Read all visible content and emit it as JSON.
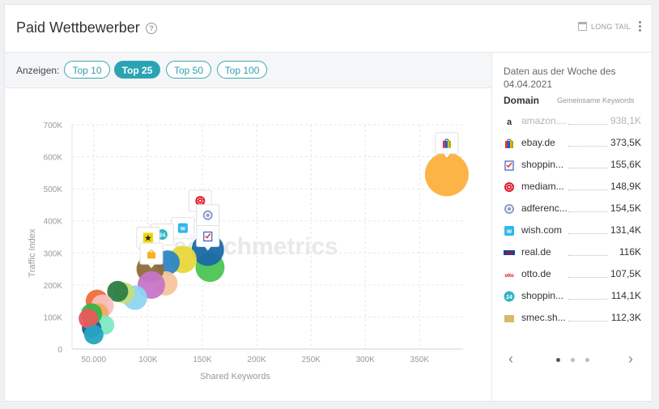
{
  "header": {
    "title": "Paid Wettbewerber",
    "help_icon": "help-circle-icon",
    "long_tail_label": "LONG TAIL",
    "calendar_icon": "calendar-icon",
    "menu_icon": "more-vertical-icon"
  },
  "toolbar": {
    "show_label": "Anzeigen:",
    "options": [
      "Top 10",
      "Top 25",
      "Top 50",
      "Top 100"
    ],
    "selected": "Top 25"
  },
  "watermark": "searchmetrics",
  "chart_data": {
    "type": "scatter",
    "xlabel": "Shared Keywords",
    "ylabel": "Traffic Index",
    "xlim": [
      30000,
      390000
    ],
    "ylim": [
      0,
      700000
    ],
    "x_ticks": [
      {
        "v": 50000,
        "l": "50.000"
      },
      {
        "v": 100000,
        "l": "100K"
      },
      {
        "v": 150000,
        "l": "150K"
      },
      {
        "v": 200000,
        "l": "200K"
      },
      {
        "v": 250000,
        "l": "250K"
      },
      {
        "v": 300000,
        "l": "300K"
      },
      {
        "v": 350000,
        "l": "350K"
      }
    ],
    "y_ticks": [
      {
        "v": 0,
        "l": "0"
      },
      {
        "v": 100000,
        "l": "100K"
      },
      {
        "v": 200000,
        "l": "200K"
      },
      {
        "v": 300000,
        "l": "300K"
      },
      {
        "v": 400000,
        "l": "400K"
      },
      {
        "v": 500000,
        "l": "500K"
      },
      {
        "v": 600000,
        "l": "600K"
      },
      {
        "v": 700000,
        "l": "700K"
      }
    ],
    "grid": true,
    "points": [
      {
        "x": 375000,
        "y": 545000,
        "r": 27,
        "color": "#fbb03b"
      },
      {
        "x": 157000,
        "y": 255000,
        "r": 18,
        "color": "#4cc552"
      },
      {
        "x": 155000,
        "y": 310000,
        "r": 20,
        "color": "#1a6aa8"
      },
      {
        "x": 132000,
        "y": 280000,
        "r": 17,
        "color": "#e8d83b"
      },
      {
        "x": 118000,
        "y": 270000,
        "r": 15,
        "color": "#2d86c4"
      },
      {
        "x": 116000,
        "y": 205000,
        "r": 15,
        "color": "#f6c49c"
      },
      {
        "x": 102000,
        "y": 250000,
        "r": 17,
        "color": "#8f6b3b"
      },
      {
        "x": 103000,
        "y": 200000,
        "r": 17,
        "color": "#c776c9"
      },
      {
        "x": 88000,
        "y": 160000,
        "r": 15,
        "color": "#8dd5f2"
      },
      {
        "x": 78000,
        "y": 175000,
        "r": 13,
        "color": "#c4de7a"
      },
      {
        "x": 72000,
        "y": 180000,
        "r": 13,
        "color": "#2e7d43"
      },
      {
        "x": 53000,
        "y": 150000,
        "r": 14,
        "color": "#f26b3a"
      },
      {
        "x": 58000,
        "y": 135000,
        "r": 14,
        "color": "#f9c0c0"
      },
      {
        "x": 54000,
        "y": 110000,
        "r": 13,
        "color": "#f3a95b"
      },
      {
        "x": 60000,
        "y": 75000,
        "r": 12,
        "color": "#7ee9c4"
      },
      {
        "x": 48000,
        "y": 65000,
        "r": 12,
        "color": "#1b5e9e"
      },
      {
        "x": 48000,
        "y": 110000,
        "r": 13,
        "color": "#37b34a"
      },
      {
        "x": 45000,
        "y": 95000,
        "r": 12,
        "color": "#ea5858"
      },
      {
        "x": 50000,
        "y": 45000,
        "r": 12,
        "color": "#27a4bf"
      }
    ],
    "markers": [
      {
        "x": 375000,
        "y": 640000,
        "icon": "ebay-bag-icon"
      },
      {
        "x": 148000,
        "y": 460000,
        "icon": "mediamarkt-icon"
      },
      {
        "x": 155000,
        "y": 415000,
        "icon": "adference-icon"
      },
      {
        "x": 155000,
        "y": 350000,
        "icon": "shopping-checklist-icon"
      },
      {
        "x": 132000,
        "y": 375000,
        "icon": "wish-icon"
      },
      {
        "x": 113000,
        "y": 355000,
        "icon": "shopping24-icon"
      },
      {
        "x": 100000,
        "y": 345000,
        "icon": "star-badge-icon"
      },
      {
        "x": 103000,
        "y": 295000,
        "icon": "shopping-bag-icon"
      }
    ]
  },
  "side": {
    "date_text": "Daten aus der Woche des 04.04.2021",
    "col_domain": "Domain",
    "col_keywords": "Gemeinsame Keywords",
    "rows": [
      {
        "domain": "amazon....",
        "value": "938,1K",
        "icon": "amazon-icon",
        "faded": true
      },
      {
        "domain": "ebay.de",
        "value": "373,5K",
        "icon": "ebay-bag-icon",
        "faded": false
      },
      {
        "domain": "shoppin...",
        "value": "155,6K",
        "icon": "shopping-checklist-icon",
        "faded": false
      },
      {
        "domain": "mediam...",
        "value": "148,9K",
        "icon": "mediamarkt-icon",
        "faded": false
      },
      {
        "domain": "adferenc...",
        "value": "154,5K",
        "icon": "adference-icon",
        "faded": false
      },
      {
        "domain": "wish.com",
        "value": "131,4K",
        "icon": "wish-icon",
        "faded": false
      },
      {
        "domain": "real.de",
        "value": "116K",
        "icon": "real-icon",
        "faded": false
      },
      {
        "domain": "otto.de",
        "value": "107,5K",
        "icon": "otto-icon",
        "faded": false
      },
      {
        "domain": "shoppin...",
        "value": "114,1K",
        "icon": "shopping24-icon",
        "faded": false
      },
      {
        "domain": "smec.sh...",
        "value": "112,3K",
        "icon": "smec-icon",
        "faded": false
      }
    ],
    "pager": {
      "prev_icon": "chevron-left-icon",
      "next_icon": "chevron-right-icon",
      "pages": 3,
      "current": 1
    }
  }
}
